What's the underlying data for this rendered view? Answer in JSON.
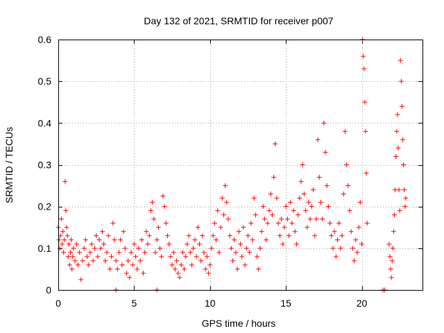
{
  "chart_data": {
    "type": "scatter",
    "title": "Day 132 of 2021, SRMTID for receiver p007",
    "xlabel": "GPS time / hours",
    "ylabel": "SRMTID / TECUs",
    "xlim": [
      0,
      24
    ],
    "ylim": [
      0,
      0.6
    ],
    "x_ticks": [
      0,
      5,
      10,
      15,
      20
    ],
    "x_tick_labels": [
      "0",
      "5",
      "10",
      "15",
      "20"
    ],
    "y_ticks": [
      0,
      0.1,
      0.2,
      0.3,
      0.4,
      0.5,
      0.6
    ],
    "y_tick_labels": [
      "0",
      "0.1",
      "0.2",
      "0.3",
      "0.4",
      "0.5",
      "0.6"
    ],
    "grid": true,
    "marker": "plus",
    "marker_color": "#ff0000",
    "series": [
      {
        "name": "SRMTID",
        "points": [
          [
            0.0,
            0.15
          ],
          [
            0.05,
            0.12
          ],
          [
            0.1,
            0.1
          ],
          [
            0.15,
            0.13
          ],
          [
            0.2,
            0.17
          ],
          [
            0.25,
            0.11
          ],
          [
            0.3,
            0.14
          ],
          [
            0.35,
            0.09
          ],
          [
            0.4,
            0.12
          ],
          [
            0.45,
            0.26
          ],
          [
            0.5,
            0.19
          ],
          [
            0.55,
            0.15
          ],
          [
            0.6,
            0.13
          ],
          [
            0.65,
            0.08
          ],
          [
            0.7,
            0.11
          ],
          [
            0.75,
            0.06
          ],
          [
            0.8,
            0.09
          ],
          [
            0.85,
            0.12
          ],
          [
            0.9,
            0.05
          ],
          [
            0.95,
            0.08
          ],
          [
            1.0,
            0.1
          ],
          [
            1.1,
            0.07
          ],
          [
            1.2,
            0.11
          ],
          [
            1.3,
            0.06
          ],
          [
            1.4,
            0.09
          ],
          [
            1.5,
            0.025
          ],
          [
            1.6,
            0.07
          ],
          [
            1.7,
            0.1
          ],
          [
            1.8,
            0.12
          ],
          [
            1.9,
            0.08
          ],
          [
            2.0,
            0.06
          ],
          [
            2.1,
            0.09
          ],
          [
            2.2,
            0.11
          ],
          [
            2.3,
            0.07
          ],
          [
            2.4,
            0.1
          ],
          [
            2.5,
            0.13
          ],
          [
            2.6,
            0.08
          ],
          [
            2.7,
            0.12
          ],
          [
            2.8,
            0.1
          ],
          [
            2.9,
            0.14
          ],
          [
            3.0,
            0.11
          ],
          [
            3.1,
            0.07
          ],
          [
            3.2,
            0.09
          ],
          [
            3.3,
            0.13
          ],
          [
            3.4,
            0.05
          ],
          [
            3.5,
            0.08
          ],
          [
            3.6,
            0.16
          ],
          [
            3.7,
            0.12
          ],
          [
            3.8,
            0.07
          ],
          [
            3.9,
            0.05
          ],
          [
            4.0,
            0.09
          ],
          [
            4.1,
            0.12
          ],
          [
            4.2,
            0.06
          ],
          [
            4.3,
            0.14
          ],
          [
            4.4,
            0.1
          ],
          [
            4.5,
            0.04
          ],
          [
            4.6,
            0.07
          ],
          [
            4.7,
            0.03
          ],
          [
            4.8,
            0.09
          ],
          [
            4.9,
            0.06
          ],
          [
            5.0,
            0.11
          ],
          [
            5.1,
            0.08
          ],
          [
            5.2,
            0.05
          ],
          [
            5.3,
            0.1
          ],
          [
            5.4,
            0.07
          ],
          [
            5.5,
            0.12
          ],
          [
            5.6,
            0.04
          ],
          [
            5.7,
            0.09
          ],
          [
            5.8,
            0.14
          ],
          [
            5.9,
            0.11
          ],
          [
            6.0,
            0.13
          ],
          [
            6.1,
            0.19
          ],
          [
            6.2,
            0.21
          ],
          [
            6.3,
            0.17
          ],
          [
            6.4,
            0.09
          ],
          [
            6.5,
            0.12
          ],
          [
            6.6,
            0.15
          ],
          [
            6.7,
            0.1
          ],
          [
            6.8,
            0.08
          ],
          [
            6.9,
            0.225
          ],
          [
            7.0,
            0.2
          ],
          [
            7.1,
            0.16
          ],
          [
            7.2,
            0.13
          ],
          [
            7.3,
            0.11
          ],
          [
            7.4,
            0.08
          ],
          [
            7.5,
            0.06
          ],
          [
            7.6,
            0.09
          ],
          [
            7.7,
            0.05
          ],
          [
            7.8,
            0.07
          ],
          [
            7.9,
            0.04
          ],
          [
            8.0,
            0.03
          ],
          [
            8.1,
            0.06
          ],
          [
            8.2,
            0.09
          ],
          [
            8.3,
            0.05
          ],
          [
            8.4,
            0.08
          ],
          [
            8.5,
            0.11
          ],
          [
            8.6,
            0.13
          ],
          [
            8.7,
            0.09
          ],
          [
            8.8,
            0.06
          ],
          [
            8.9,
            0.1
          ],
          [
            9.0,
            0.12
          ],
          [
            9.1,
            0.08
          ],
          [
            9.2,
            0.15
          ],
          [
            9.3,
            0.11
          ],
          [
            9.4,
            0.07
          ],
          [
            9.5,
            0.13
          ],
          [
            9.6,
            0.09
          ],
          [
            9.7,
            0.05
          ],
          [
            9.8,
            0.08
          ],
          [
            9.9,
            0.04
          ],
          [
            10.0,
            0.06
          ],
          [
            10.1,
            0.1
          ],
          [
            10.2,
            0.13
          ],
          [
            10.3,
            0.16
          ],
          [
            10.4,
            0.12
          ],
          [
            10.5,
            0.19
          ],
          [
            10.6,
            0.09
          ],
          [
            10.7,
            0.15
          ],
          [
            10.8,
            0.22
          ],
          [
            10.9,
            0.18
          ],
          [
            11.0,
            0.25
          ],
          [
            11.1,
            0.21
          ],
          [
            11.2,
            0.17
          ],
          [
            11.3,
            0.13
          ],
          [
            11.4,
            0.1
          ],
          [
            11.5,
            0.07
          ],
          [
            11.6,
            0.12
          ],
          [
            11.7,
            0.09
          ],
          [
            11.8,
            0.05
          ],
          [
            11.9,
            0.14
          ],
          [
            12.0,
            0.11
          ],
          [
            12.1,
            0.08
          ],
          [
            12.2,
            0.15
          ],
          [
            12.3,
            0.06
          ],
          [
            12.4,
            0.1
          ],
          [
            12.5,
            0.13
          ],
          [
            12.6,
            0.09
          ],
          [
            12.7,
            0.16
          ],
          [
            12.8,
            0.12
          ],
          [
            12.9,
            0.22
          ],
          [
            13.0,
            0.18
          ],
          [
            13.1,
            0.08
          ],
          [
            13.2,
            0.05
          ],
          [
            13.3,
            0.1
          ],
          [
            13.4,
            0.14
          ],
          [
            13.5,
            0.2
          ],
          [
            13.6,
            0.17
          ],
          [
            13.7,
            0.12
          ],
          [
            13.8,
            0.16
          ],
          [
            13.9,
            0.19
          ],
          [
            14.0,
            0.23
          ],
          [
            14.1,
            0.18
          ],
          [
            14.2,
            0.27
          ],
          [
            14.3,
            0.35
          ],
          [
            14.4,
            0.22
          ],
          [
            14.5,
            0.16
          ],
          [
            14.6,
            0.13
          ],
          [
            14.7,
            0.17
          ],
          [
            14.8,
            0.11
          ],
          [
            14.9,
            0.15
          ],
          [
            15.0,
            0.2
          ],
          [
            15.1,
            0.17
          ],
          [
            15.2,
            0.13
          ],
          [
            15.3,
            0.21
          ],
          [
            15.4,
            0.16
          ],
          [
            15.5,
            0.19
          ],
          [
            15.6,
            0.14
          ],
          [
            15.7,
            0.11
          ],
          [
            15.8,
            0.18
          ],
          [
            15.9,
            0.22
          ],
          [
            16.0,
            0.26
          ],
          [
            16.1,
            0.3
          ],
          [
            16.2,
            0.23
          ],
          [
            16.3,
            0.19
          ],
          [
            16.4,
            0.15
          ],
          [
            16.5,
            0.21
          ],
          [
            16.6,
            0.17
          ],
          [
            16.7,
            0.2
          ],
          [
            16.8,
            0.24
          ],
          [
            16.9,
            0.13
          ],
          [
            17.0,
            0.17
          ],
          [
            17.1,
            0.36
          ],
          [
            17.2,
            0.27
          ],
          [
            17.3,
            0.21
          ],
          [
            17.4,
            0.17
          ],
          [
            17.5,
            0.4
          ],
          [
            17.6,
            0.33
          ],
          [
            17.7,
            0.25
          ],
          [
            17.8,
            0.2
          ],
          [
            17.9,
            0.16
          ],
          [
            18.0,
            0.13
          ],
          [
            18.1,
            0.1
          ],
          [
            18.2,
            0.14
          ],
          [
            18.3,
            0.08
          ],
          [
            18.4,
            0.12
          ],
          [
            18.5,
            0.16
          ],
          [
            18.6,
            0.1
          ],
          [
            18.7,
            0.13
          ],
          [
            18.8,
            0.23
          ],
          [
            18.9,
            0.38
          ],
          [
            19.0,
            0.3
          ],
          [
            19.1,
            0.25
          ],
          [
            19.2,
            0.19
          ],
          [
            19.3,
            0.14
          ],
          [
            19.4,
            0.1
          ],
          [
            19.5,
            0.07
          ],
          [
            19.6,
            0.12
          ],
          [
            19.7,
            0.09
          ],
          [
            19.8,
            0.15
          ],
          [
            19.9,
            0.21
          ],
          [
            20.0,
            0.11
          ],
          [
            20.05,
            0.6
          ],
          [
            20.1,
            0.56
          ],
          [
            20.15,
            0.53
          ],
          [
            20.2,
            0.45
          ],
          [
            20.25,
            0.38
          ],
          [
            20.3,
            0.28
          ],
          [
            20.35,
            0.16
          ],
          [
            21.5,
            0.0
          ],
          [
            21.8,
            0.11
          ],
          [
            21.85,
            0.08
          ],
          [
            21.9,
            0.05
          ],
          [
            21.95,
            0.03
          ],
          [
            22.0,
            0.07
          ],
          [
            22.05,
            0.1
          ],
          [
            22.1,
            0.14
          ],
          [
            22.15,
            0.18
          ],
          [
            22.2,
            0.24
          ],
          [
            22.25,
            0.32
          ],
          [
            22.3,
            0.38
          ],
          [
            22.35,
            0.42
          ],
          [
            22.4,
            0.34
          ],
          [
            22.45,
            0.24
          ],
          [
            22.5,
            0.19
          ],
          [
            22.55,
            0.55
          ],
          [
            22.6,
            0.5
          ],
          [
            22.65,
            0.44
          ],
          [
            22.7,
            0.36
          ],
          [
            22.75,
            0.3
          ],
          [
            22.8,
            0.24
          ],
          [
            22.85,
            0.2
          ],
          [
            22.9,
            0.22
          ],
          [
            3.8,
            0.0
          ],
          [
            6.5,
            0.0
          ],
          [
            21.4,
            0.0
          ]
        ]
      }
    ]
  }
}
